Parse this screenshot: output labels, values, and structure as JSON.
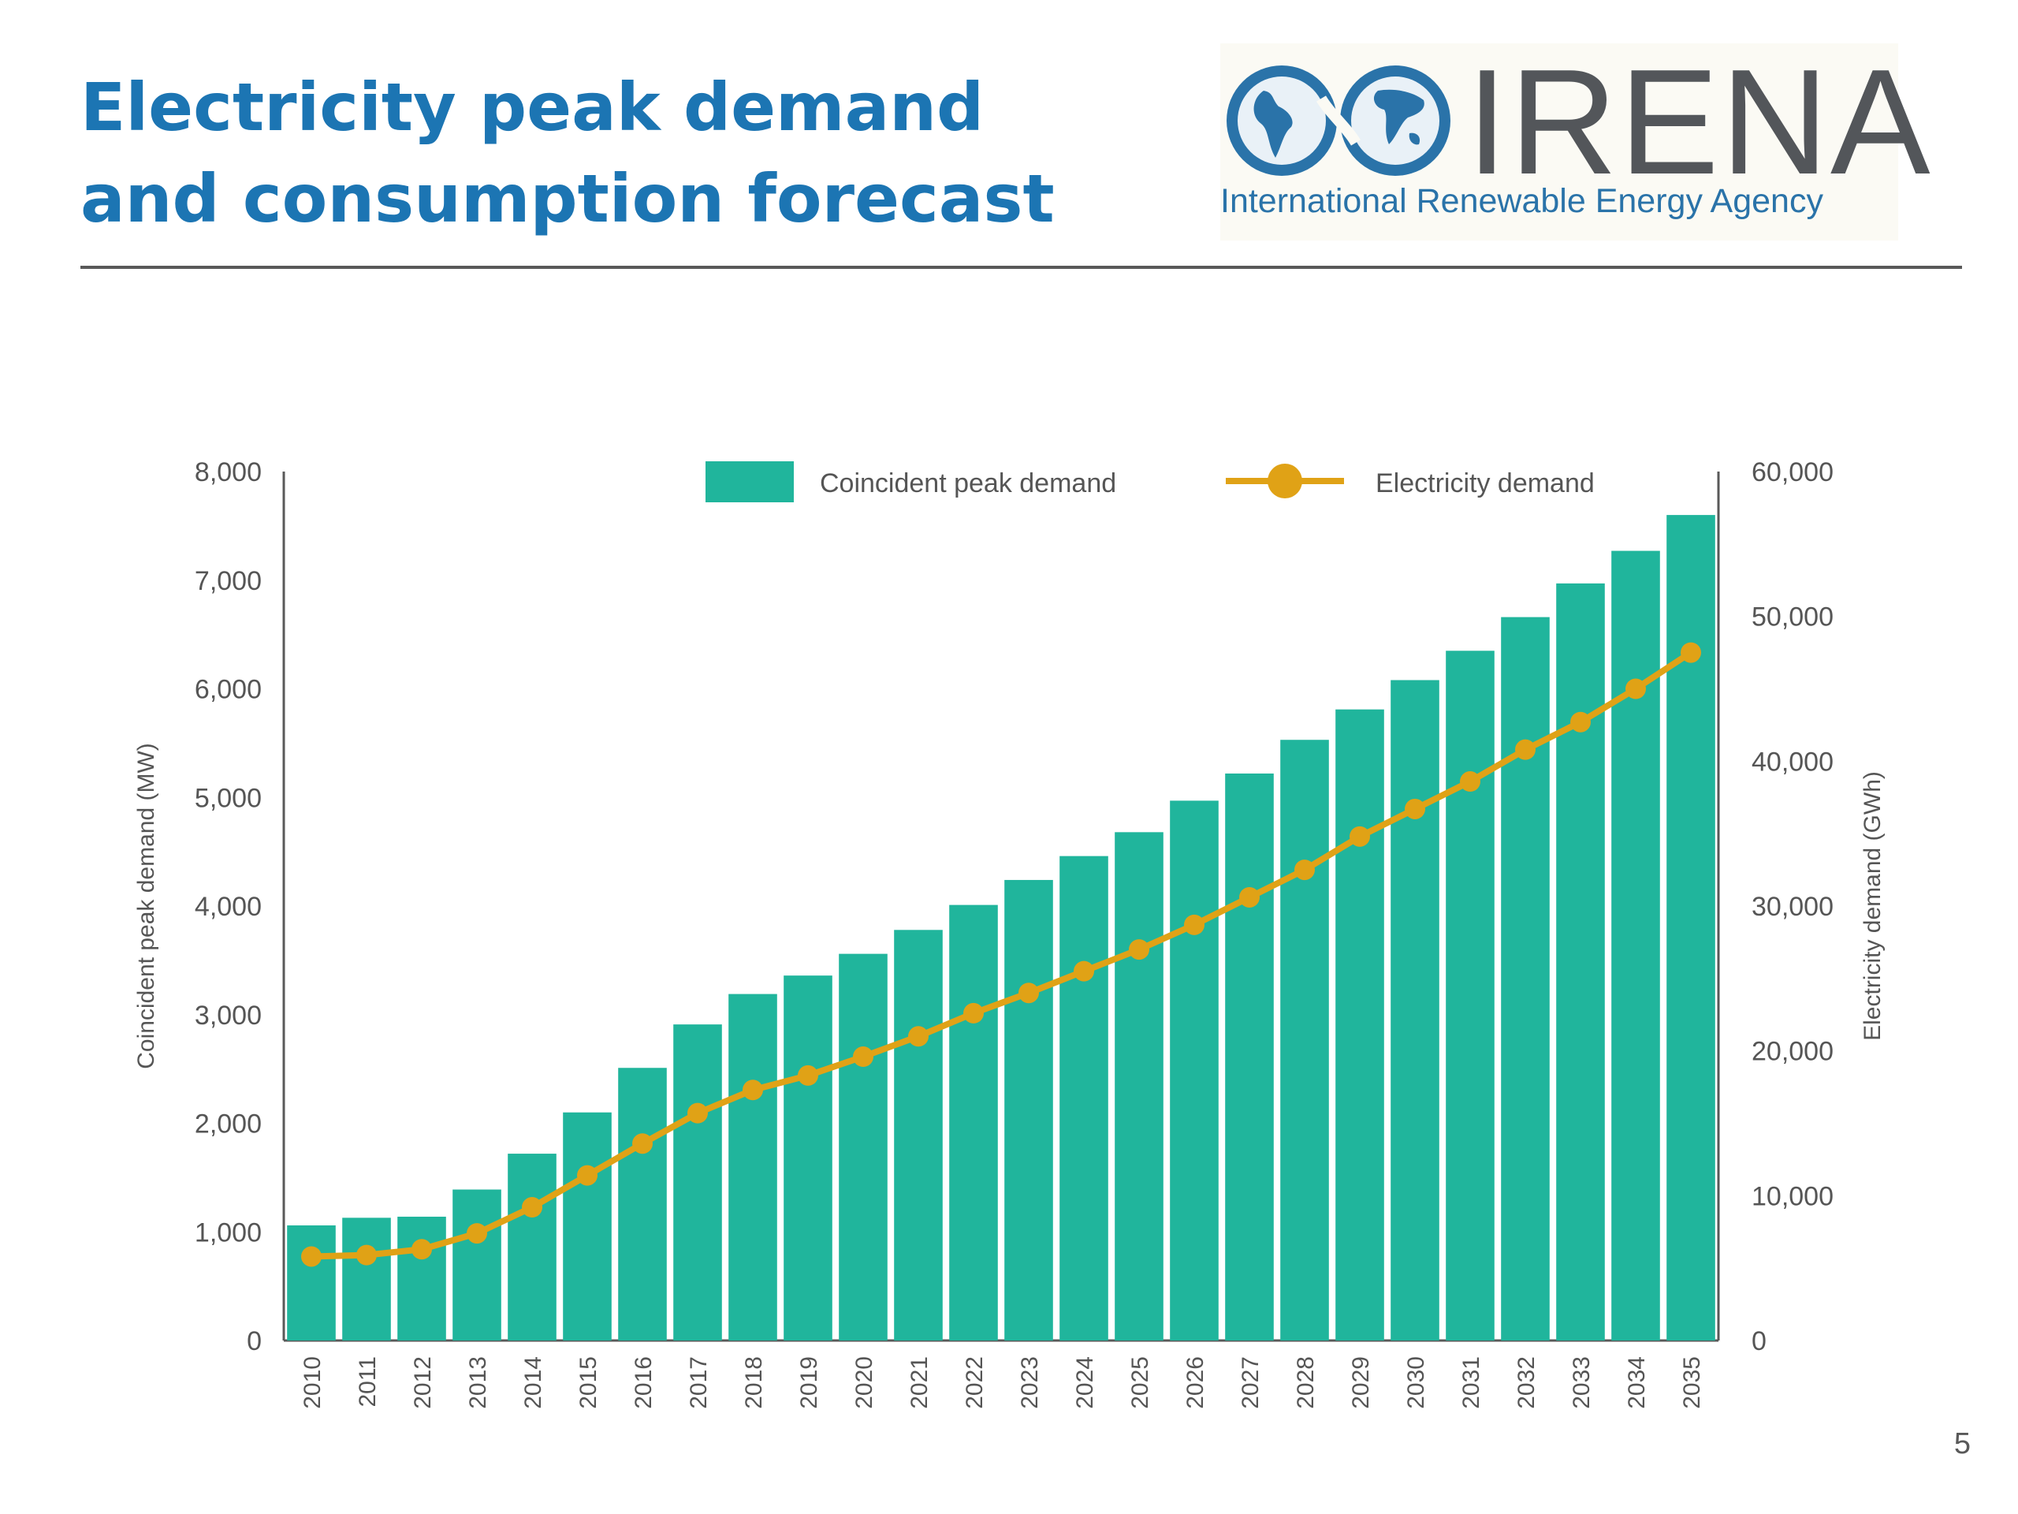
{
  "slide": {
    "title": "Electricity peak demand and consumption forecast",
    "page_number": "5"
  },
  "logo": {
    "name": "IRENA",
    "subtitle": "International Renewable Energy Agency"
  },
  "colors": {
    "title": "#1c75b3",
    "bar": "#20b59c",
    "line": "#e0a216",
    "axis": "#595959",
    "logo_blue": "#2a73a9",
    "logo_gray": "#53565a"
  },
  "chart_data": {
    "type": "bar",
    "title": "",
    "xlabel": "",
    "ylabel": "Coincident peak demand (MW)",
    "y2label": "Electricity demand (GWh)",
    "ylim": [
      0,
      8000
    ],
    "y2lim": [
      0,
      60000
    ],
    "yticks": [
      "0",
      "1,000",
      "2,000",
      "3,000",
      "4,000",
      "5,000",
      "6,000",
      "7,000",
      "8,000"
    ],
    "y2ticks": [
      "0",
      "10,000",
      "20,000",
      "30,000",
      "40,000",
      "50,000",
      "60,000"
    ],
    "grid": false,
    "legend_position": "top",
    "categories": [
      "2010",
      "2011",
      "2012",
      "2013",
      "2014",
      "2015",
      "2016",
      "2017",
      "2018",
      "2019",
      "2020",
      "2021",
      "2022",
      "2023",
      "2024",
      "2025",
      "2026",
      "2027",
      "2028",
      "2029",
      "2030",
      "2031",
      "2032",
      "2033",
      "2034",
      "2035"
    ],
    "series": [
      {
        "name": "Coincident peak demand",
        "kind": "bar",
        "axis": "left",
        "values": [
          1060,
          1130,
          1140,
          1390,
          1720,
          2100,
          2510,
          2910,
          3190,
          3360,
          3560,
          3780,
          4010,
          4240,
          4460,
          4680,
          4970,
          5220,
          5530,
          5810,
          6080,
          6350,
          6660,
          6970,
          7270,
          7600
        ]
      },
      {
        "name": "Electricity demand",
        "kind": "line",
        "axis": "right",
        "values": [
          5800,
          5900,
          6300,
          7400,
          9200,
          11400,
          13600,
          15700,
          17300,
          18300,
          19600,
          21000,
          22600,
          24000,
          25500,
          27000,
          28700,
          30600,
          32500,
          34800,
          36700,
          38600,
          40800,
          42700,
          45000,
          47500
        ]
      }
    ]
  }
}
